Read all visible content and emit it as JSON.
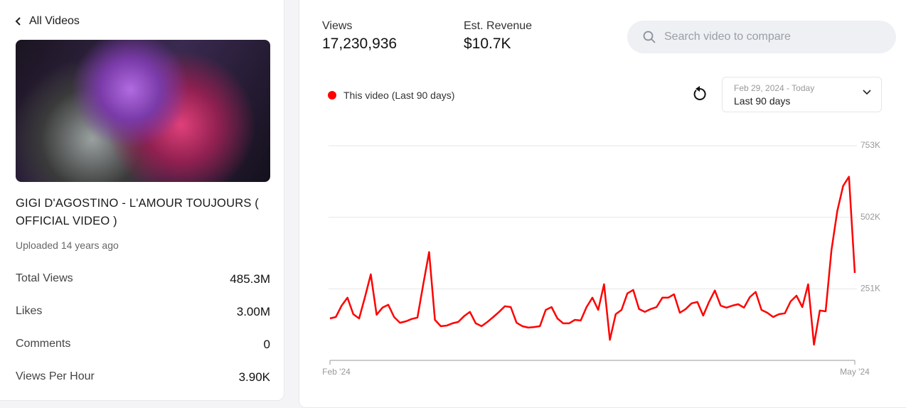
{
  "sidebar": {
    "back": "All Videos",
    "video_title": "GIGI D'AGOSTINO - L'AMOUR TOUJOURS ( OFFICIAL VIDEO )",
    "uploaded": "Uploaded 14 years ago",
    "stats": [
      {
        "label": "Total Views",
        "value": "485.3M"
      },
      {
        "label": "Likes",
        "value": "3.00M"
      },
      {
        "label": "Comments",
        "value": "0"
      },
      {
        "label": "Views Per Hour",
        "value": "3.90K"
      }
    ]
  },
  "summary": [
    {
      "label": "Views",
      "value": "17,230,936"
    },
    {
      "label": "Est. Revenue",
      "value": "$10.7K"
    }
  ],
  "search_placeholder": "Search video to compare",
  "date_range": {
    "range": "Feb 29, 2024 - Today",
    "label": "Last 90 days"
  },
  "chart_data": {
    "type": "line",
    "categories": [
      "Feb '24",
      null,
      null,
      null,
      null,
      null,
      null,
      null,
      null,
      null,
      null,
      null,
      null,
      null,
      null,
      null,
      null,
      null,
      null,
      null,
      null,
      null,
      null,
      null,
      null,
      null,
      null,
      null,
      null,
      null,
      null,
      null,
      null,
      null,
      null,
      null,
      null,
      null,
      null,
      null,
      null,
      null,
      null,
      null,
      null,
      null,
      null,
      null,
      null,
      null,
      null,
      null,
      null,
      null,
      null,
      null,
      null,
      null,
      null,
      null,
      null,
      null,
      null,
      null,
      null,
      null,
      null,
      null,
      null,
      null,
      null,
      null,
      null,
      null,
      null,
      null,
      null,
      null,
      null,
      null,
      null,
      null,
      null,
      null,
      null,
      null,
      null,
      null,
      null,
      null,
      "May '24"
    ],
    "series": [
      {
        "name": "This video (Last 90 days)",
        "color": "#ff0000",
        "values": [
          147000,
          152000,
          192000,
          220000,
          162000,
          147000,
          222000,
          302000,
          160000,
          185000,
          195000,
          152000,
          132000,
          137000,
          145000,
          150000,
          267000,
          380000,
          142000,
          120000,
          122000,
          130000,
          135000,
          155000,
          170000,
          130000,
          120000,
          135000,
          152000,
          170000,
          190000,
          187000,
          132000,
          120000,
          115000,
          117000,
          120000,
          177000,
          187000,
          147000,
          130000,
          130000,
          142000,
          140000,
          187000,
          220000,
          177000,
          267000,
          72000,
          162000,
          177000,
          235000,
          247000,
          180000,
          170000,
          180000,
          187000,
          220000,
          220000,
          232000,
          167000,
          180000,
          200000,
          205000,
          157000,
          205000,
          245000,
          192000,
          185000,
          192000,
          197000,
          185000,
          222000,
          240000,
          177000,
          167000,
          152000,
          162000,
          165000,
          207000,
          227000,
          187000,
          267000,
          55000,
          175000,
          172000,
          387000,
          524000,
          612000,
          644000,
          307000
        ]
      }
    ],
    "ylim": [
      0,
      753000
    ],
    "yticks": [
      {
        "value": 251000,
        "label": "251K"
      },
      {
        "value": 502000,
        "label": "502K"
      },
      {
        "value": 753000,
        "label": "753K"
      }
    ],
    "grid": true
  }
}
